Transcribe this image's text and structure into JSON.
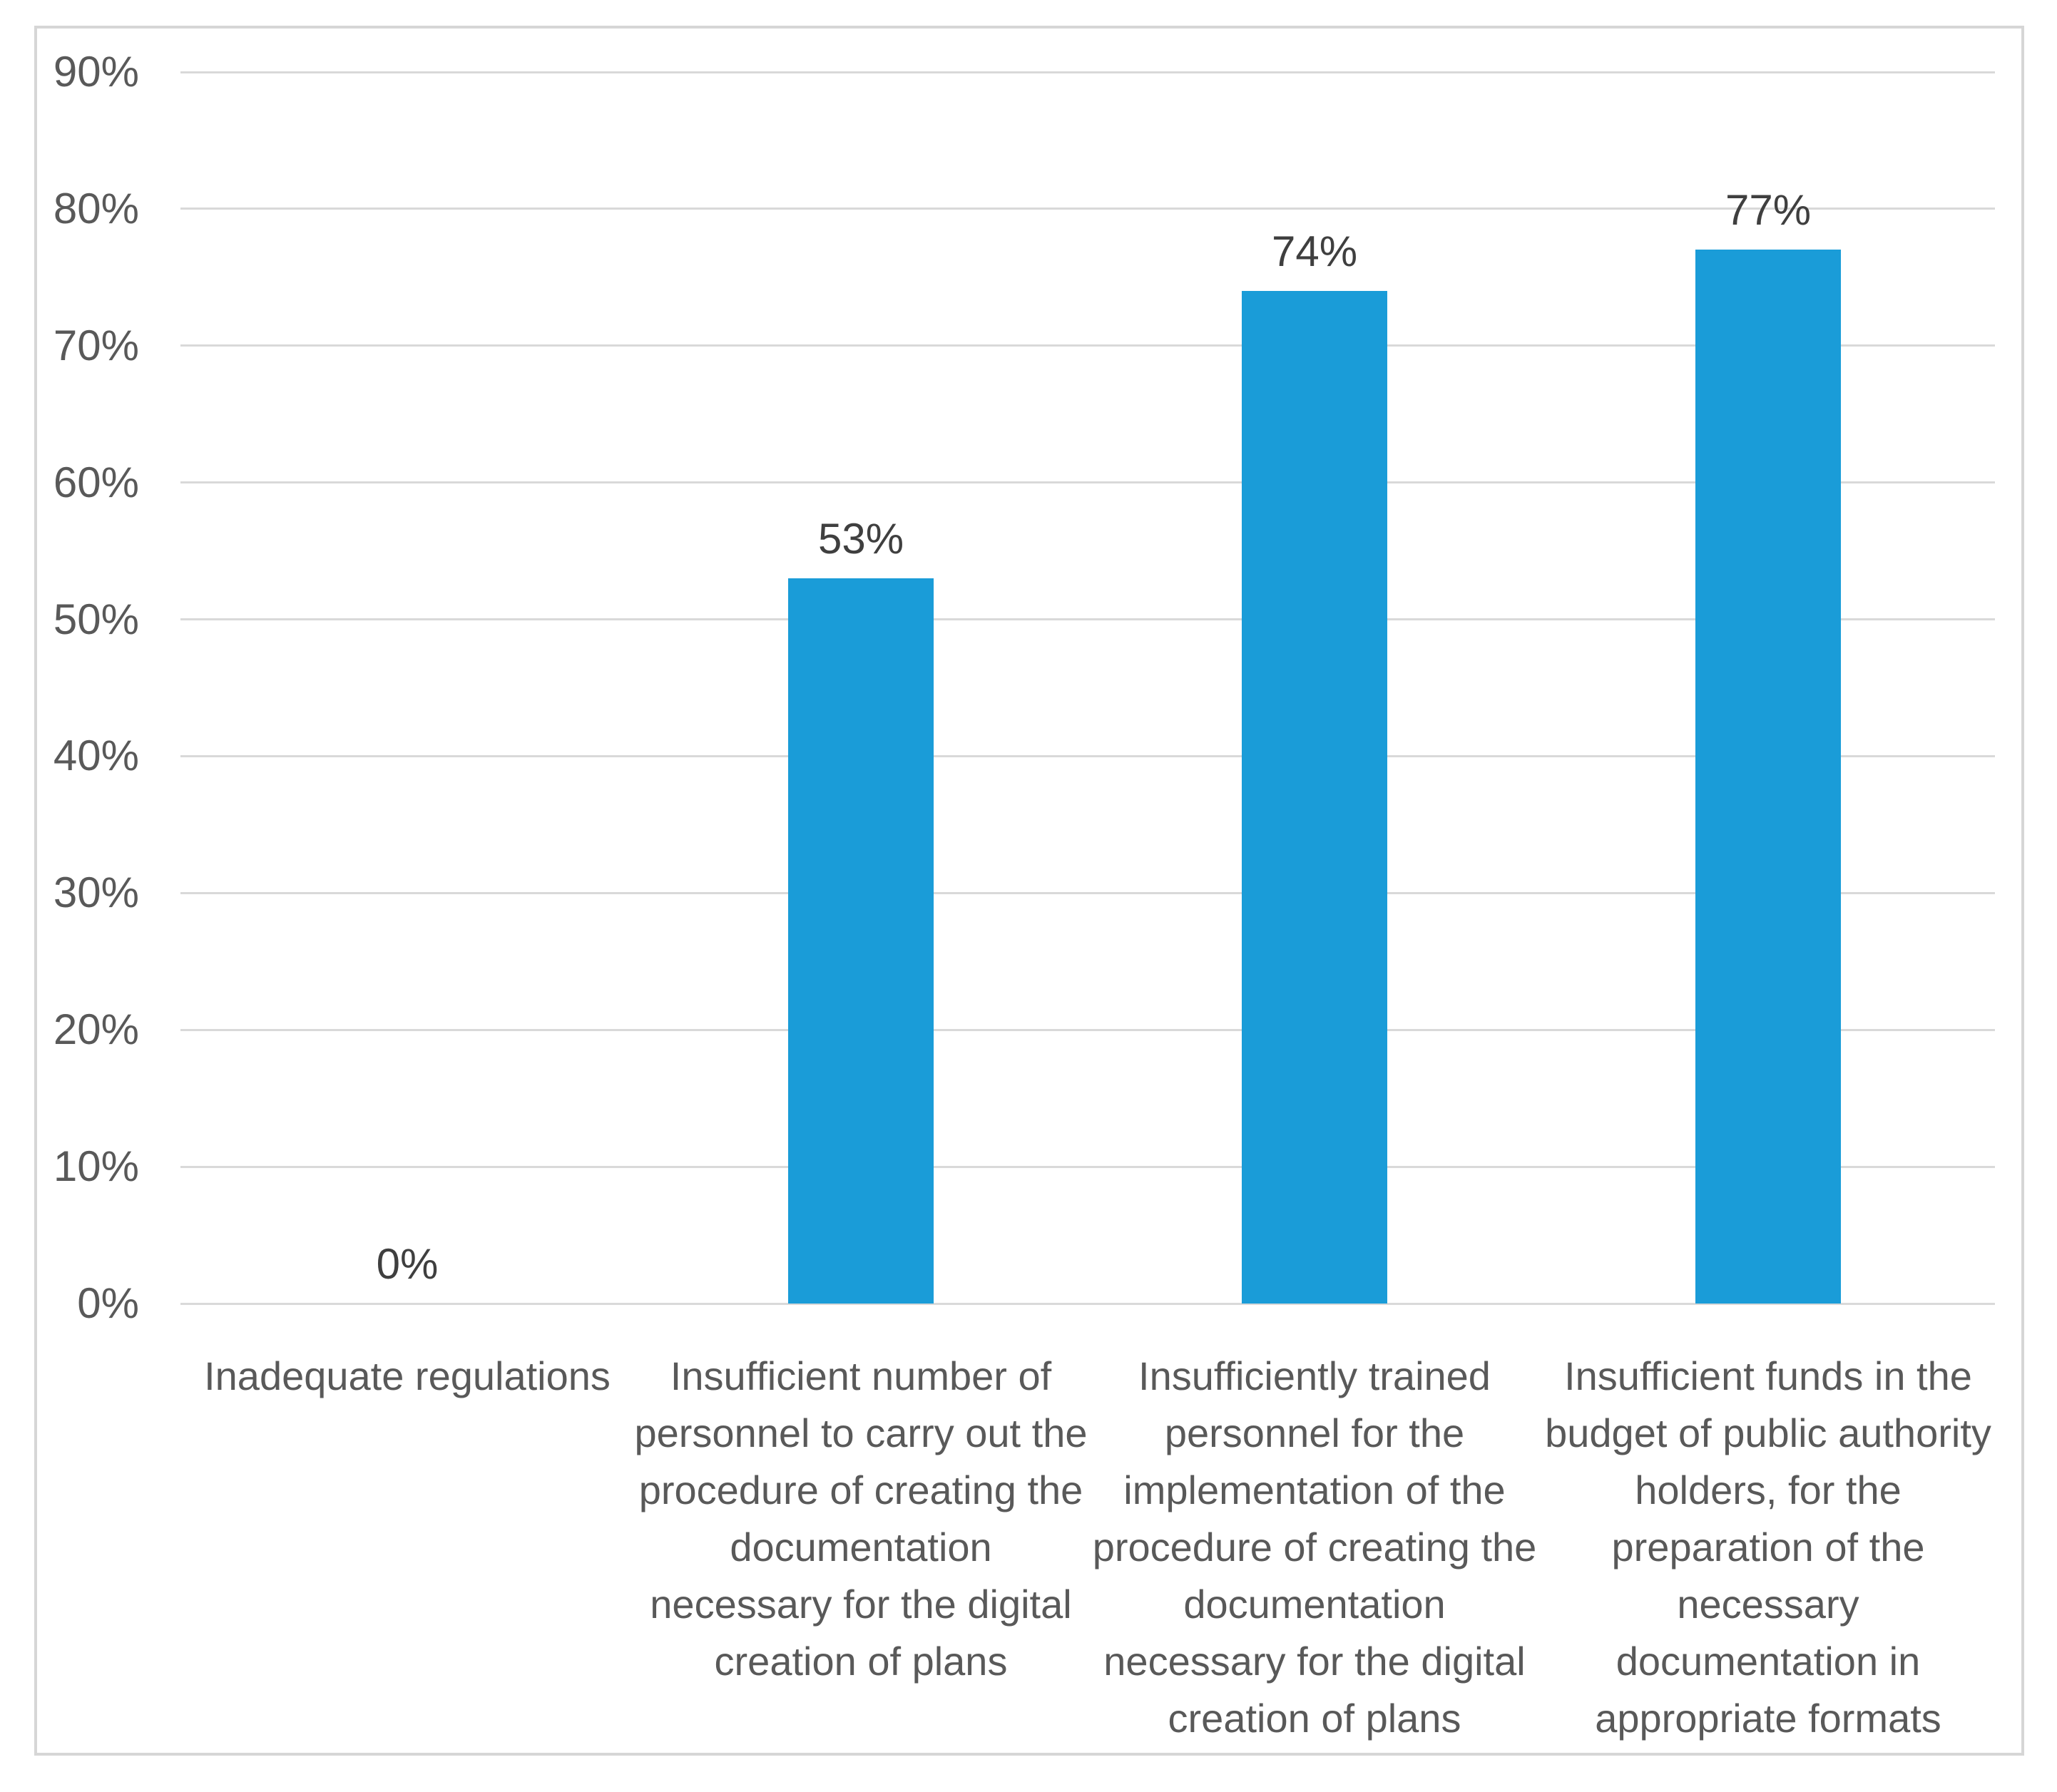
{
  "chart_data": {
    "type": "bar",
    "title": "",
    "xlabel": "",
    "ylabel": "",
    "categories": [
      "Inadequate regulations",
      "Insufficient number of personnel to carry out the procedure of creating the documentation necessary for the digital creation of plans",
      "Insufficiently trained personnel for the implementation of the procedure of creating the documentation necessary for the digital creation of plans",
      "Insufficient funds in the budget of public authority holders, for the preparation of the necessary documentation in appropriate formats"
    ],
    "values": [
      0,
      53,
      74,
      77
    ],
    "data_labels": [
      "0%",
      "53%",
      "74%",
      "77%"
    ],
    "y_ticks": [
      "0%",
      "10%",
      "20%",
      "30%",
      "40%",
      "50%",
      "60%",
      "70%",
      "80%",
      "90%"
    ],
    "y_tick_values": [
      0,
      10,
      20,
      30,
      40,
      50,
      60,
      70,
      80,
      90
    ],
    "ylim": [
      0,
      90
    ],
    "grid": "on",
    "legend": "none",
    "bar_color": "#1a9cd8",
    "grid_color": "#d9d9d9",
    "axis_text_color": "#595959",
    "data_label_color": "#3f3f3f"
  }
}
